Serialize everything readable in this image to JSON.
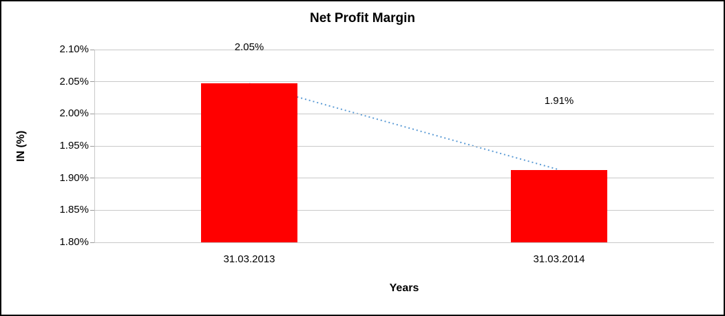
{
  "chart_data": {
    "type": "bar",
    "title": "Net Profit Margin",
    "xlabel": "Years",
    "ylabel": "IN (%)",
    "categories": [
      "31.03.2013",
      "31.03.2014"
    ],
    "values": [
      2.047,
      1.913
    ],
    "point_labels": [
      "2.05%",
      "1.91%"
    ],
    "ylim": [
      1.8,
      2.1
    ],
    "yticks": [
      {
        "value": 2.1,
        "label": "2.10%"
      },
      {
        "value": 2.05,
        "label": "2.05%"
      },
      {
        "value": 2.0,
        "label": "2.00%"
      },
      {
        "value": 1.95,
        "label": "1.95%"
      },
      {
        "value": 1.9,
        "label": "1.90%"
      },
      {
        "value": 1.85,
        "label": "1.85%"
      },
      {
        "value": 1.8,
        "label": "1.80%"
      }
    ],
    "grid": "horizontal",
    "legend": "none",
    "bar_color": "#ff0000",
    "trendline_color": "#5b9bd5",
    "gridline_color": "#c8c8c8",
    "has_trendline": true
  }
}
